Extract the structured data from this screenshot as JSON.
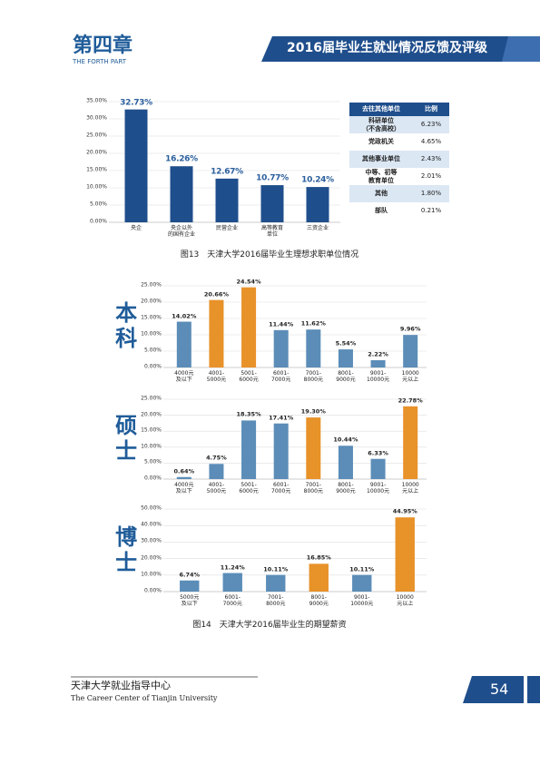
{
  "header": {
    "chapter": "第四章",
    "subtitle": "THE FORTH PART",
    "banner": "2016届毕业生就业情况反馈及评级"
  },
  "chart_data": [
    {
      "type": "bar",
      "categories": [
        "央企",
        "央企以外\n的国有企业",
        "民营企业",
        "高等教育\n单位",
        "三资企业"
      ],
      "values": [
        32.73,
        16.26,
        12.67,
        10.77,
        10.24
      ],
      "value_labels": [
        "32.73%",
        "16.26%",
        "12.67%",
        "10.77%",
        "10.24%"
      ],
      "color": "#1f4e8c",
      "ylim": [
        0,
        35
      ],
      "yticks": [
        {
          "value": 0,
          "label": "0.00%"
        },
        {
          "value": 5,
          "label": "5.00%"
        },
        {
          "value": 10,
          "label": "10.00%"
        },
        {
          "value": 15,
          "label": "15.00%"
        },
        {
          "value": 20,
          "label": "20.00%"
        },
        {
          "value": 25,
          "label": "25.00%"
        },
        {
          "value": 30,
          "label": "30.00%"
        },
        {
          "value": 35,
          "label": "35.00%"
        }
      ],
      "grid": true
    },
    {
      "type": "bar",
      "title": "本科",
      "categories": [
        "4000元\n及以下",
        "4001-\n5000元",
        "5001-\n6000元",
        "6001-\n7000元",
        "7001-\n8000元",
        "8001-\n9000元",
        "9001-\n10000元",
        "10000\n元以上"
      ],
      "values": [
        14.02,
        20.66,
        24.54,
        11.44,
        11.62,
        5.54,
        2.22,
        9.96
      ],
      "value_labels": [
        "14.02%",
        "20.66%",
        "24.54%",
        "11.44%",
        "11.62%",
        "5.54%",
        "2.22%",
        "9.96%"
      ],
      "colors": [
        "#5b8db8",
        "#e8922a",
        "#e8922a",
        "#5b8db8",
        "#5b8db8",
        "#5b8db8",
        "#5b8db8",
        "#5b8db8"
      ],
      "ylim": [
        0,
        25
      ],
      "yticks": [
        {
          "value": 0,
          "label": "0.00%"
        },
        {
          "value": 5,
          "label": "5.00%"
        },
        {
          "value": 10,
          "label": "10.00%"
        },
        {
          "value": 15,
          "label": "15.00%"
        },
        {
          "value": 20,
          "label": "20.00%"
        },
        {
          "value": 25,
          "label": "25.00%"
        }
      ],
      "grid": true
    },
    {
      "type": "bar",
      "title": "硕士",
      "categories": [
        "4000元\n及以下",
        "4001-\n5000元",
        "5001-\n6000元",
        "6001-\n7000元",
        "7001-\n8000元",
        "8001-\n9000元",
        "9001-\n10000元",
        "10000\n元以上"
      ],
      "values": [
        0.64,
        4.75,
        18.35,
        17.41,
        19.3,
        10.44,
        6.33,
        22.78
      ],
      "value_labels": [
        "0.64%",
        "4.75%",
        "18.35%",
        "17.41%",
        "19.30%",
        "10.44%",
        "6.33%",
        "22.78%"
      ],
      "colors": [
        "#5b8db8",
        "#5b8db8",
        "#5b8db8",
        "#5b8db8",
        "#e8922a",
        "#5b8db8",
        "#5b8db8",
        "#e8922a"
      ],
      "ylim": [
        0,
        25
      ],
      "yticks": [
        {
          "value": 0,
          "label": "0.00%"
        },
        {
          "value": 5,
          "label": "5.00%"
        },
        {
          "value": 10,
          "label": "10.00%"
        },
        {
          "value": 15,
          "label": "15.00%"
        },
        {
          "value": 20,
          "label": "20.00%"
        },
        {
          "value": 25,
          "label": "25.00%"
        }
      ],
      "grid": true
    },
    {
      "type": "bar",
      "title": "博士",
      "categories": [
        "5000元\n及以下",
        "6001-\n7000元",
        "7001-\n8000元",
        "8001-\n9000元",
        "9001-\n10000元",
        "10000\n元以上"
      ],
      "values": [
        6.74,
        11.24,
        10.11,
        16.85,
        10.11,
        44.95
      ],
      "value_labels": [
        "6.74%",
        "11.24%",
        "10.11%",
        "16.85%",
        "10.11%",
        "44.95%"
      ],
      "colors": [
        "#5b8db8",
        "#5b8db8",
        "#5b8db8",
        "#e8922a",
        "#5b8db8",
        "#e8922a"
      ],
      "ylim": [
        0,
        50
      ],
      "yticks": [
        {
          "value": 0,
          "label": "0.00%"
        },
        {
          "value": 10,
          "label": "10.00%"
        },
        {
          "value": 20,
          "label": "20.00%"
        },
        {
          "value": 30,
          "label": "30.00%"
        },
        {
          "value": 40,
          "label": "40.00%"
        },
        {
          "value": 50,
          "label": "50.00%"
        }
      ],
      "grid": true
    }
  ],
  "table": {
    "header": [
      "去往其他单位",
      "比例"
    ],
    "rows": [
      [
        "科研单位\n（不含高校）",
        "6.23%"
      ],
      [
        "党政机关",
        "4.65%"
      ],
      [
        "其他事业单位",
        "2.43%"
      ],
      [
        "中等、初等\n教育单位",
        "2.01%"
      ],
      [
        "其他",
        "1.80%"
      ],
      [
        "部队",
        "0.21%"
      ]
    ]
  },
  "captions": [
    "图13　天津大学2016届毕业生理想求职单位情况",
    "图14　天津大学2016届毕业生的期望薪资"
  ],
  "footer": {
    "org": "天津大学就业指导中心",
    "org_en": "The Career Center of Tianjin University",
    "page": "54"
  }
}
